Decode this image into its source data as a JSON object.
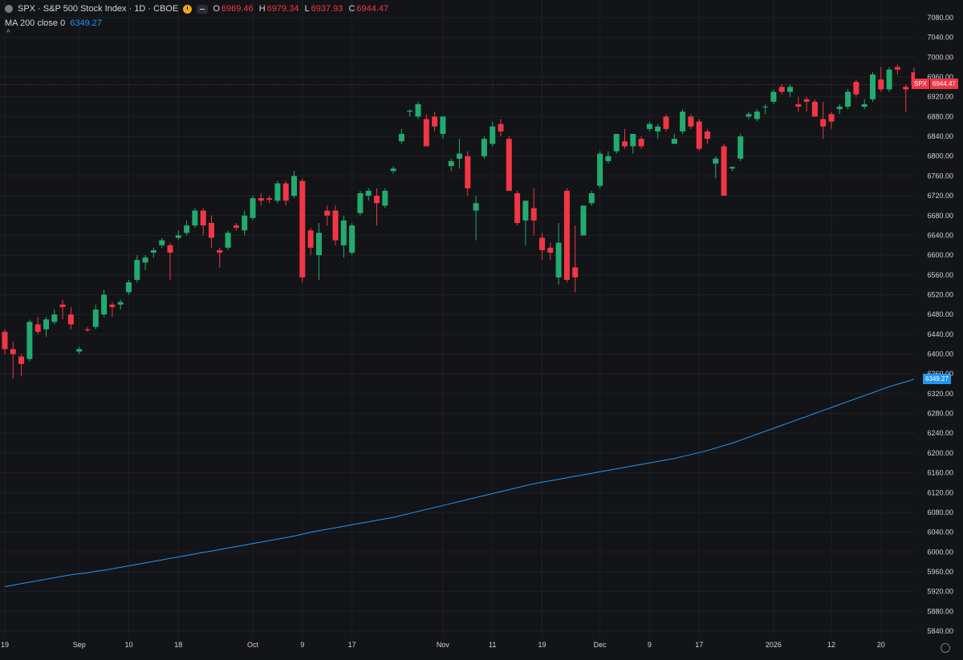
{
  "legend": {
    "title": "SPX · S&P 500 Stock Index · 1D · CBOE",
    "ohlc": [
      {
        "label": "O",
        "value": "6969.46"
      },
      {
        "label": "H",
        "value": "6979.34"
      },
      {
        "label": "L",
        "value": "6937.93"
      },
      {
        "label": "C",
        "value": "6944.47"
      }
    ],
    "ma_label": "MA 200 close 0",
    "ma_value": "6349.27",
    "collapse_glyph": "^"
  },
  "price_tag": {
    "symbol": "SPX",
    "value": "6944.47"
  },
  "ma_tag": {
    "value": "6349.27"
  },
  "colors": {
    "background": "#131417",
    "up": "#22ab70",
    "down": "#f23645",
    "ma": "#2196f3",
    "grid": "#1e2026",
    "axis_text": "#d1d4dc"
  },
  "icons": [
    "symbol-icon",
    "clock-icon",
    "dash-icon",
    "gear-icon"
  ],
  "chart_data": {
    "type": "candlestick",
    "y_axis": {
      "position": "right",
      "ylim": [
        5820,
        7100
      ],
      "ticks": [
        7080,
        7040,
        7000,
        6960,
        6920,
        6880,
        6840,
        6800,
        6760,
        6720,
        6680,
        6640,
        6600,
        6560,
        6520,
        6480,
        6440,
        6400,
        6360,
        6320,
        6280,
        6240,
        6200,
        6160,
        6120,
        6080,
        6040,
        6000,
        5960,
        5920,
        5880,
        5840
      ]
    },
    "x_axis": {
      "ticks": [
        {
          "label": "19",
          "index": 0
        },
        {
          "label": "Sep",
          "index": 9
        },
        {
          "label": "10",
          "index": 15
        },
        {
          "label": "18",
          "index": 21
        },
        {
          "label": "Oct",
          "index": 30
        },
        {
          "label": "9",
          "index": 36
        },
        {
          "label": "17",
          "index": 42
        },
        {
          "label": "Nov",
          "index": 53
        },
        {
          "label": "11",
          "index": 59
        },
        {
          "label": "19",
          "index": 65
        },
        {
          "label": "Dec",
          "index": 72
        },
        {
          "label": "9",
          "index": 78
        },
        {
          "label": "17",
          "index": 84
        },
        {
          "label": "2026",
          "index": 93
        },
        {
          "label": "12",
          "index": 100
        },
        {
          "label": "20",
          "index": 106
        }
      ]
    },
    "candles": [
      [
        6445,
        6450,
        6400,
        6410
      ],
      [
        6410,
        6425,
        6350,
        6400
      ],
      [
        6395,
        6400,
        6355,
        6380
      ],
      [
        6390,
        6470,
        6385,
        6465
      ],
      [
        6460,
        6475,
        6440,
        6445
      ],
      [
        6450,
        6475,
        6435,
        6470
      ],
      [
        6465,
        6490,
        6460,
        6480
      ],
      [
        6500,
        6510,
        6470,
        6495
      ],
      [
        6480,
        6495,
        6450,
        6460
      ],
      [
        6405,
        6415,
        6400,
        6410
      ],
      [
        6450,
        6455,
        6445,
        6448
      ],
      [
        6455,
        6500,
        6450,
        6490
      ],
      [
        6480,
        6530,
        6475,
        6520
      ],
      [
        6500,
        6505,
        6475,
        6495
      ],
      [
        6500,
        6510,
        6490,
        6505
      ],
      [
        6525,
        6550,
        6520,
        6545
      ],
      [
        6550,
        6600,
        6545,
        6590
      ],
      [
        6585,
        6600,
        6570,
        6595
      ],
      [
        6605,
        6615,
        6595,
        6610
      ],
      [
        6620,
        6635,
        6615,
        6630
      ],
      [
        6620,
        6625,
        6550,
        6605
      ],
      [
        6635,
        6650,
        6630,
        6640
      ],
      [
        6645,
        6670,
        6640,
        6660
      ],
      [
        6660,
        6695,
        6655,
        6690
      ],
      [
        6690,
        6695,
        6640,
        6660
      ],
      [
        6665,
        6680,
        6615,
        6635
      ],
      [
        6610,
        6615,
        6575,
        6605
      ],
      [
        6615,
        6650,
        6610,
        6645
      ],
      [
        6660,
        6665,
        6650,
        6655
      ],
      [
        6650,
        6690,
        6640,
        6680
      ],
      [
        6675,
        6720,
        6670,
        6715
      ],
      [
        6715,
        6725,
        6700,
        6710
      ],
      [
        6715,
        6720,
        6705,
        6712
      ],
      [
        6710,
        6750,
        6705,
        6745
      ],
      [
        6745,
        6750,
        6700,
        6710
      ],
      [
        6720,
        6770,
        6715,
        6760
      ],
      [
        6750,
        6755,
        6545,
        6555
      ],
      [
        6650,
        6655,
        6600,
        6615
      ],
      [
        6600,
        6665,
        6550,
        6645
      ],
      [
        6690,
        6700,
        6660,
        6680
      ],
      [
        6690,
        6700,
        6620,
        6630
      ],
      [
        6620,
        6680,
        6595,
        6670
      ],
      [
        6605,
        6665,
        6600,
        6660
      ],
      [
        6685,
        6730,
        6680,
        6725
      ],
      [
        6720,
        6735,
        6710,
        6730
      ],
      [
        6720,
        6735,
        6660,
        6705
      ],
      [
        6700,
        6735,
        6695,
        6730
      ],
      [
        6770,
        6780,
        6765,
        6775
      ],
      [
        6830,
        6855,
        6825,
        6845
      ],
      [
        6890,
        6895,
        6880,
        6892
      ],
      [
        6880,
        6910,
        6875,
        6905
      ],
      [
        6875,
        6885,
        6825,
        6820
      ],
      [
        6880,
        6890,
        6850,
        6860
      ],
      [
        6845,
        6880,
        6835,
        6880
      ],
      [
        6780,
        6795,
        6770,
        6790
      ],
      [
        6795,
        6835,
        6775,
        6805
      ],
      [
        6800,
        6810,
        6720,
        6735
      ],
      [
        6690,
        6720,
        6630,
        6705
      ],
      [
        6800,
        6840,
        6795,
        6835
      ],
      [
        6825,
        6870,
        6820,
        6860
      ],
      [
        6865,
        6875,
        6840,
        6850
      ],
      [
        6835,
        6840,
        6730,
        6730
      ],
      [
        6725,
        6730,
        6660,
        6665
      ],
      [
        6670,
        6710,
        6620,
        6710
      ],
      [
        6695,
        6735,
        6640,
        6670
      ],
      [
        6635,
        6645,
        6590,
        6610
      ],
      [
        6615,
        6625,
        6590,
        6605
      ],
      [
        6555,
        6665,
        6540,
        6625
      ],
      [
        6730,
        6735,
        6545,
        6550
      ],
      [
        6575,
        6660,
        6525,
        6555
      ],
      [
        6640,
        6700,
        6640,
        6700
      ],
      [
        6705,
        6730,
        6700,
        6725
      ],
      [
        6740,
        6810,
        6735,
        6805
      ],
      [
        6790,
        6810,
        6785,
        6800
      ],
      [
        6810,
        6845,
        6805,
        6845
      ],
      [
        6830,
        6855,
        6815,
        6820
      ],
      [
        6820,
        6845,
        6805,
        6845
      ],
      [
        6835,
        6840,
        6815,
        6820
      ],
      [
        6855,
        6870,
        6850,
        6865
      ],
      [
        6850,
        6865,
        6835,
        6860
      ],
      [
        6880,
        6885,
        6850,
        6855
      ],
      [
        6825,
        6845,
        6825,
        6835
      ],
      [
        6850,
        6895,
        6845,
        6890
      ],
      [
        6880,
        6885,
        6855,
        6860
      ],
      [
        6870,
        6875,
        6810,
        6815
      ],
      [
        6850,
        6855,
        6825,
        6835
      ],
      [
        6785,
        6800,
        6755,
        6795
      ],
      [
        6820,
        6825,
        6720,
        6720
      ],
      [
        6775,
        6780,
        6770,
        6778
      ],
      [
        6795,
        6845,
        6790,
        6840
      ],
      [
        6880,
        6890,
        6875,
        6885
      ],
      [
        6875,
        6895,
        6870,
        6890
      ],
      [
        6900,
        6905,
        6885,
        6900
      ],
      [
        6910,
        6935,
        6905,
        6930
      ],
      [
        6940,
        6945,
        6925,
        6930
      ],
      [
        6930,
        6945,
        6920,
        6940
      ],
      [
        6905,
        6920,
        6890,
        6900
      ],
      [
        6915,
        6920,
        6890,
        6910
      ],
      [
        6910,
        6915,
        6880,
        6880
      ],
      [
        6875,
        6910,
        6835,
        6860
      ],
      [
        6885,
        6890,
        6855,
        6870
      ],
      [
        6895,
        6905,
        6885,
        6900
      ],
      [
        6900,
        6935,
        6895,
        6930
      ],
      [
        6950,
        6955,
        6920,
        6925
      ],
      [
        6900,
        6915,
        6895,
        6905
      ],
      [
        6915,
        6970,
        6910,
        6965
      ],
      [
        6955,
        6980,
        6930,
        6935
      ],
      [
        6935,
        6980,
        6930,
        6975
      ],
      [
        6980,
        6985,
        6965,
        6975
      ],
      [
        6940,
        6945,
        6890,
        6935
      ],
      [
        6969.46,
        6979.34,
        6937.93,
        6944.47
      ]
    ],
    "series": [
      {
        "name": "MA 200 close 0",
        "type": "line",
        "values": [
          5930,
          5933,
          5936,
          5939,
          5942,
          5945,
          5948,
          5951,
          5954,
          5956,
          5958,
          5961,
          5963,
          5966,
          5969,
          5972,
          5975,
          5978,
          5981,
          5984,
          5987,
          5990,
          5993,
          5996,
          5999,
          6002,
          6005,
          6008,
          6011,
          6014,
          6017,
          6020,
          6023,
          6026,
          6029,
          6032,
          6036,
          6040,
          6043,
          6046,
          6049,
          6052,
          6055,
          6058,
          6061,
          6064,
          6067,
          6070,
          6074,
          6078,
          6082,
          6086,
          6090,
          6094,
          6098,
          6102,
          6106,
          6110,
          6114,
          6118,
          6122,
          6126,
          6130,
          6134,
          6138,
          6141,
          6144,
          6147,
          6150,
          6153,
          6156,
          6159,
          6162,
          6165,
          6168,
          6171,
          6174,
          6177,
          6180,
          6183,
          6186,
          6189,
          6193,
          6197,
          6201,
          6205,
          6210,
          6215,
          6220,
          6226,
          6232,
          6238,
          6244,
          6250,
          6256,
          6262,
          6268,
          6274,
          6280,
          6286,
          6292,
          6298,
          6304,
          6310,
          6316,
          6322,
          6328,
          6334,
          6339,
          6344,
          6349.27
        ]
      }
    ]
  }
}
